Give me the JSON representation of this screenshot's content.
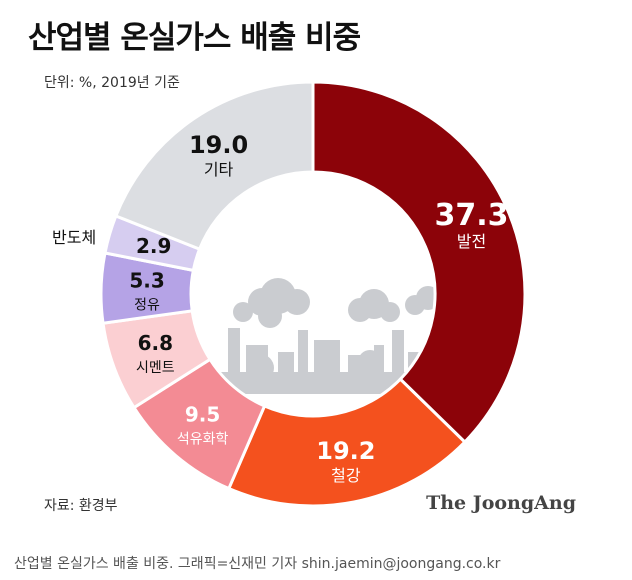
{
  "header": {
    "title": "산업별 온실가스 배출 비중",
    "unit": "단위: %, 2019년 기준"
  },
  "footer": {
    "source": "자료: 환경부",
    "brand": "The JoongAng",
    "caption": "산업별 온실가스 배출 비중. 그래픽=신재민 기자 shin.jaemin@joongang.co.kr"
  },
  "chart_data": {
    "type": "pie",
    "donut": true,
    "slices": [
      {
        "label": "발전",
        "value": 37.3,
        "color": "#8c0309",
        "text_color": "#ffffff"
      },
      {
        "label": "철강",
        "value": 19.2,
        "color": "#f4511e",
        "text_color": "#ffffff"
      },
      {
        "label": "석유화학",
        "value": 9.5,
        "color": "#f38b94",
        "text_color": "#ffffff"
      },
      {
        "label": "시멘트",
        "value": 6.8,
        "color": "#fbcfd2",
        "text_color": "#111111"
      },
      {
        "label": "정유",
        "value": 5.3,
        "color": "#b5a3e6",
        "text_color": "#111111"
      },
      {
        "label": "반도체",
        "value": 2.9,
        "color": "#d6cdf0",
        "text_color": "#111111"
      },
      {
        "label": "기타",
        "value": 19.0,
        "color": "#dcdee2",
        "text_color": "#111111"
      }
    ]
  }
}
